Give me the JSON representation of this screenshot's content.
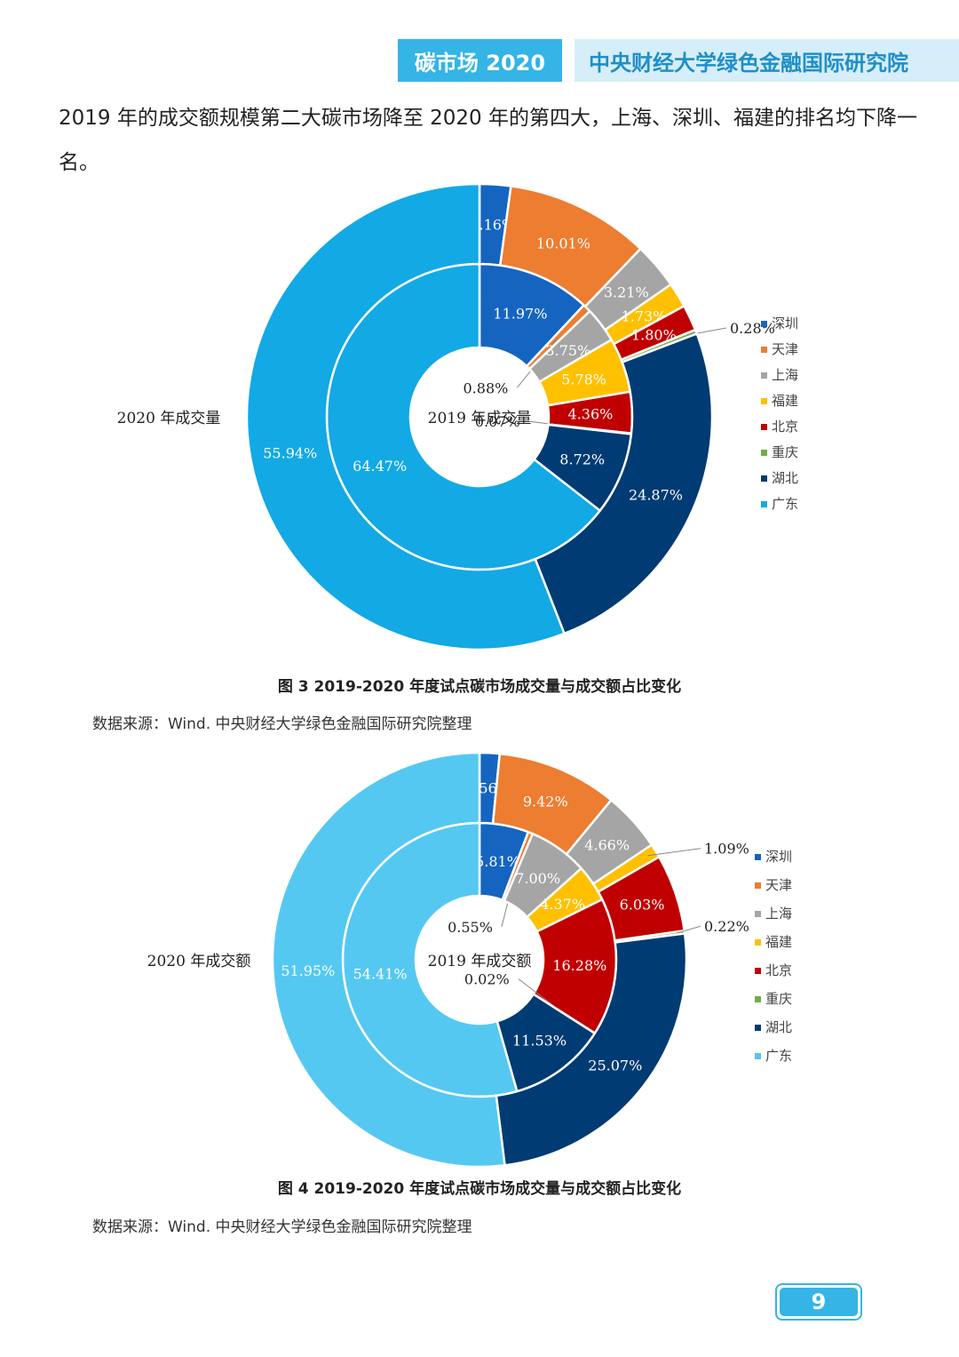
{
  "header": {
    "left": "碳市场 2020",
    "right": "中央财经大学绿色金融国际研究院"
  },
  "intro_text": "2019 年的成交额规模第二大碳市场降至 2020 年的第四大，上海、深圳、福建的排名均下降一名。",
  "chart_data": [
    {
      "type": "pie",
      "subtype": "nested-donut",
      "outer_label": "2020 年成交量",
      "inner_label": "2019 年成交量",
      "categories": [
        "深圳",
        "天津",
        "上海",
        "福建",
        "北京",
        "重庆",
        "湖北",
        "广东"
      ],
      "colors": [
        "#1565c0",
        "#ed7d31",
        "#a5a5a5",
        "#ffc000",
        "#c00000",
        "#70ad47",
        "#003b73",
        "#12a9e5"
      ],
      "series": [
        {
          "ring": "inner",
          "label_text": [
            "11.97%",
            "0.88%",
            "3.75%",
            "5.78%",
            "4.36%",
            "0.07%",
            "8.72%",
            "64.47%"
          ],
          "values": [
            11.97,
            0.88,
            3.75,
            5.78,
            4.36,
            0.07,
            8.72,
            64.47
          ]
        },
        {
          "ring": "outer",
          "label_text": [
            "2.16%",
            "10.01%",
            "3.21%",
            "1.73%",
            "1.80%",
            "0.28%",
            "24.87%",
            "55.94%"
          ],
          "values": [
            2.16,
            10.01,
            3.21,
            1.73,
            1.8,
            0.28,
            24.87,
            55.94
          ]
        }
      ],
      "legend": "right",
      "caption": "图 3 2019-2020 年度试点碳市场成交量与成交额占比变化",
      "source": "数据来源：Wind. 中央财经大学绿色金融国际研究院整理"
    },
    {
      "type": "pie",
      "subtype": "nested-donut",
      "outer_label": "2020 年成交额",
      "inner_label": "2019 年成交额",
      "categories": [
        "深圳",
        "天津",
        "上海",
        "福建",
        "北京",
        "重庆",
        "湖北",
        "广东"
      ],
      "colors": [
        "#1565c0",
        "#ed7d31",
        "#a5a5a5",
        "#ffc000",
        "#c00000",
        "#70ad47",
        "#003b73",
        "#55c8f2"
      ],
      "series": [
        {
          "ring": "inner",
          "label_text": [
            "5.81%",
            "0.55%",
            "7.00%",
            "4.37%",
            "16.28%",
            "0.02%",
            "11.53%",
            "54.41%"
          ],
          "values": [
            5.81,
            0.55,
            7.0,
            4.37,
            16.28,
            0.02,
            11.53,
            54.41
          ]
        },
        {
          "ring": "outer",
          "label_text": [
            "1.56%",
            "9.42%",
            "4.66%",
            "1.09%",
            "6.03%",
            "0.22%",
            "25.07%",
            "51.95%"
          ],
          "values": [
            1.56,
            9.42,
            4.66,
            1.09,
            6.03,
            0.22,
            25.07,
            51.95
          ]
        }
      ],
      "legend": "right",
      "caption": "图 4 2019-2020 年度试点碳市场成交量与成交额占比变化",
      "source": "数据来源：Wind. 中央财经大学绿色金融国际研究院整理"
    }
  ],
  "page_number": "9"
}
